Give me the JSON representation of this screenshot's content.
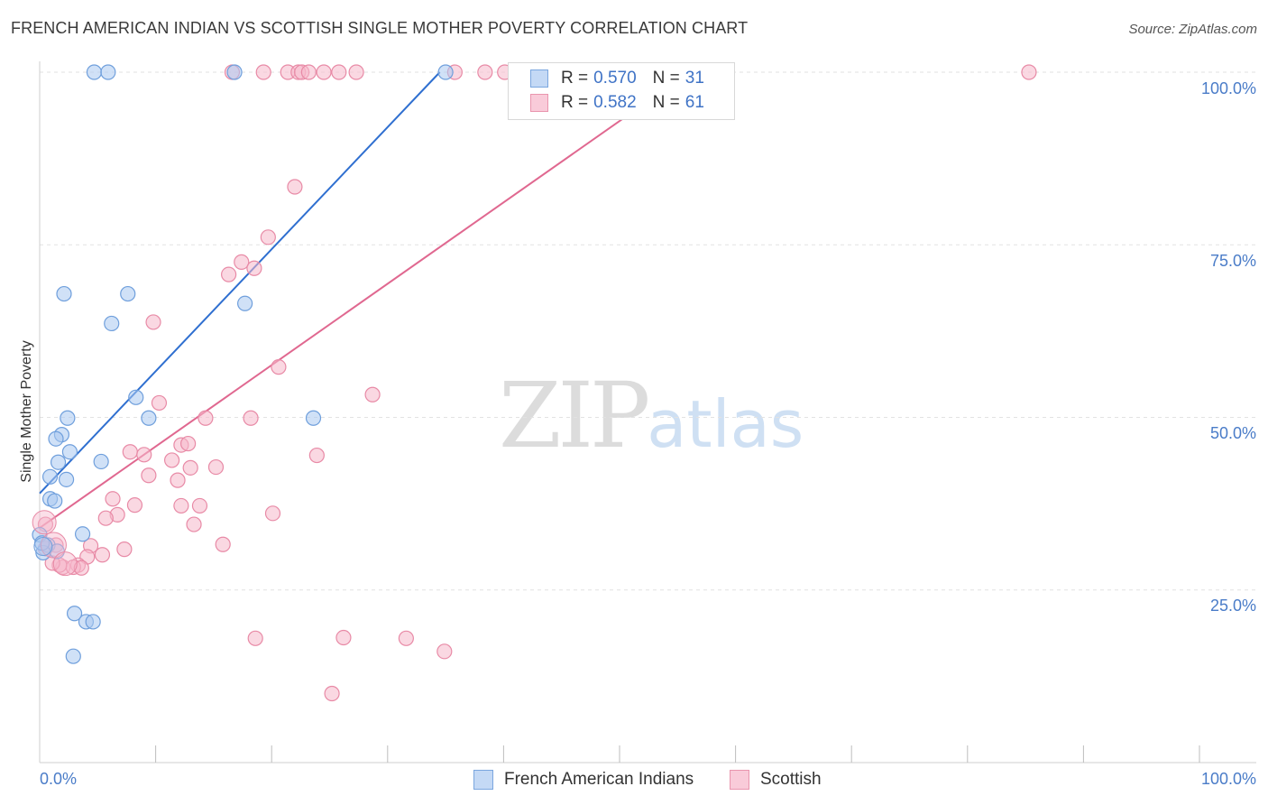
{
  "header": {
    "title": "FRENCH AMERICAN INDIAN VS SCOTTISH SINGLE MOTHER POVERTY CORRELATION CHART",
    "source": "Source: ZipAtlas.com"
  },
  "watermark": {
    "zip": "ZIP",
    "atlas": "atlas"
  },
  "legend": {
    "rows": [
      {
        "r_label": "R =",
        "r_value": "0.570",
        "n_label": "N =",
        "n_value": "31"
      },
      {
        "r_label": "R =",
        "r_value": "0.582",
        "n_label": "N =",
        "n_value": "61"
      }
    ]
  },
  "bottom_legend": {
    "series1": "French American Indians",
    "series2": "Scottish"
  },
  "colors": {
    "blue_fill": "#a9c8f0",
    "blue_stroke": "#6f9fdc",
    "blue_line": "#2f6fd0",
    "pink_fill": "#f6b8cb",
    "pink_stroke": "#e88aa6",
    "pink_line": "#e06890",
    "grid": "#e2e2e2",
    "axis_text": "#4a7cc8"
  },
  "chart_data": {
    "type": "scatter",
    "title": "FRENCH AMERICAN INDIAN VS SCOTTISH SINGLE MOTHER POVERTY CORRELATION CHART",
    "xlabel": "",
    "ylabel": "Single Mother Poverty",
    "xlim": [
      0,
      100
    ],
    "ylim": [
      0,
      100
    ],
    "x_tick_labels": [
      "0.0%",
      "100.0%"
    ],
    "y_tick_labels": [
      "25.0%",
      "50.0%",
      "75.0%",
      "100.0%"
    ],
    "y_ticks": [
      25,
      50,
      75,
      100
    ],
    "x_minor_ticks": [
      10,
      20,
      30,
      40,
      50,
      60,
      70,
      80,
      90,
      100
    ],
    "series": [
      {
        "name": "French American Indians",
        "color": "#6f9fdc",
        "R": 0.57,
        "N": 31,
        "trend": {
          "x0": 0.0,
          "y0": 39.0,
          "x1": 34.5,
          "y1": 100.0
        },
        "points": [
          [
            4.7,
            100
          ],
          [
            5.9,
            100
          ],
          [
            16.8,
            100
          ],
          [
            35.0,
            100
          ],
          [
            2.1,
            67.9
          ],
          [
            7.6,
            67.9
          ],
          [
            17.7,
            66.5
          ],
          [
            6.2,
            63.6
          ],
          [
            8.3,
            52.9
          ],
          [
            2.4,
            49.9
          ],
          [
            9.4,
            49.9
          ],
          [
            23.6,
            49.9
          ],
          [
            1.9,
            47.5
          ],
          [
            1.4,
            46.9
          ],
          [
            2.6,
            45.0
          ],
          [
            1.6,
            43.5
          ],
          [
            5.3,
            43.6
          ],
          [
            0.9,
            41.4
          ],
          [
            2.3,
            41.0
          ],
          [
            0.9,
            38.2
          ],
          [
            1.3,
            37.9
          ],
          [
            3.7,
            33.1
          ],
          [
            0.7,
            31.5
          ],
          [
            0.3,
            30.4
          ],
          [
            1.5,
            30.6
          ],
          [
            3.0,
            21.6
          ],
          [
            4.0,
            20.4
          ],
          [
            4.6,
            20.4
          ],
          [
            2.9,
            15.4
          ],
          [
            0.0,
            33.0
          ],
          [
            0.2,
            31.8
          ]
        ]
      },
      {
        "name": "Scottish",
        "color": "#e88aa6",
        "R": 0.582,
        "N": 61,
        "trend": {
          "x0": 0.0,
          "y0": 34.0,
          "x1": 56.0,
          "y1": 100.0
        },
        "points": [
          [
            16.6,
            100
          ],
          [
            19.3,
            100
          ],
          [
            21.4,
            100
          ],
          [
            22.3,
            100
          ],
          [
            22.6,
            100
          ],
          [
            23.2,
            100
          ],
          [
            24.5,
            100
          ],
          [
            25.8,
            100
          ],
          [
            27.3,
            100
          ],
          [
            35.8,
            100
          ],
          [
            38.4,
            100
          ],
          [
            40.1,
            100
          ],
          [
            85.3,
            100
          ],
          [
            22.0,
            83.4
          ],
          [
            19.7,
            76.1
          ],
          [
            17.4,
            72.5
          ],
          [
            18.5,
            71.6
          ],
          [
            16.3,
            70.7
          ],
          [
            9.8,
            63.8
          ],
          [
            20.6,
            57.3
          ],
          [
            28.7,
            53.3
          ],
          [
            10.3,
            52.1
          ],
          [
            14.3,
            49.9
          ],
          [
            18.2,
            49.9
          ],
          [
            12.2,
            46.0
          ],
          [
            12.8,
            46.2
          ],
          [
            7.8,
            45.0
          ],
          [
            9.0,
            44.6
          ],
          [
            23.9,
            44.5
          ],
          [
            11.4,
            43.8
          ],
          [
            13.0,
            42.7
          ],
          [
            15.2,
            42.8
          ],
          [
            9.4,
            41.6
          ],
          [
            11.9,
            40.9
          ],
          [
            6.3,
            38.2
          ],
          [
            8.2,
            37.3
          ],
          [
            12.2,
            37.2
          ],
          [
            13.8,
            37.2
          ],
          [
            20.1,
            36.1
          ],
          [
            6.7,
            35.9
          ],
          [
            5.7,
            35.4
          ],
          [
            13.3,
            34.5
          ],
          [
            0.5,
            34.5
          ],
          [
            15.8,
            31.6
          ],
          [
            4.4,
            31.4
          ],
          [
            7.3,
            30.9
          ],
          [
            1.4,
            31.5
          ],
          [
            0.5,
            31.0
          ],
          [
            4.1,
            29.8
          ],
          [
            5.4,
            30.1
          ],
          [
            3.3,
            28.6
          ],
          [
            2.0,
            28.3
          ],
          [
            2.9,
            28.3
          ],
          [
            3.6,
            28.2
          ],
          [
            1.7,
            28.6
          ],
          [
            18.6,
            18.0
          ],
          [
            26.2,
            18.1
          ],
          [
            31.6,
            18.0
          ],
          [
            34.9,
            16.1
          ],
          [
            25.2,
            10.0
          ],
          [
            1.1,
            28.9
          ]
        ]
      }
    ]
  }
}
